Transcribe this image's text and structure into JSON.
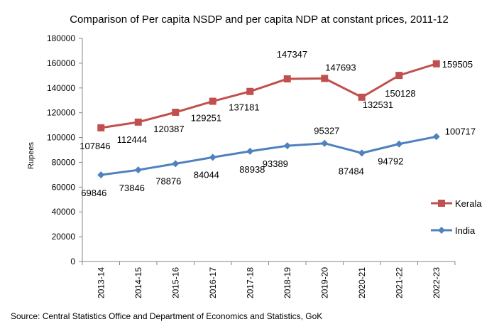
{
  "chart_data": {
    "type": "line",
    "title": "Comparison of Per capita NSDP and per capita NDP at constant prices, 2011-12",
    "xlabel": "",
    "ylabel": "Rupees",
    "ylim": [
      0,
      180000
    ],
    "yticks": [
      0,
      20000,
      40000,
      60000,
      80000,
      100000,
      120000,
      140000,
      160000,
      180000
    ],
    "grid": false,
    "legend_position": "right",
    "categories": [
      "2013-14",
      "2014-15",
      "2015-16",
      "2016-17",
      "2017-18",
      "2018-19",
      "2019-20",
      "2020-21",
      "2021-22",
      "2022-23"
    ],
    "series": [
      {
        "name": "Kerala",
        "color": "#c0504d",
        "marker": "square",
        "values": [
          107846,
          112444,
          120387,
          129251,
          137181,
          147347,
          147693,
          132531,
          150128,
          159505
        ]
      },
      {
        "name": "India",
        "color": "#4f81bd",
        "marker": "diamond",
        "values": [
          69846,
          73846,
          78876,
          84044,
          88938,
          93389,
          95327,
          87484,
          94792,
          100717
        ]
      }
    ]
  },
  "footer": {
    "source": "Source: Central Statistics Office and Department of Economics and Statistics, GoK"
  }
}
